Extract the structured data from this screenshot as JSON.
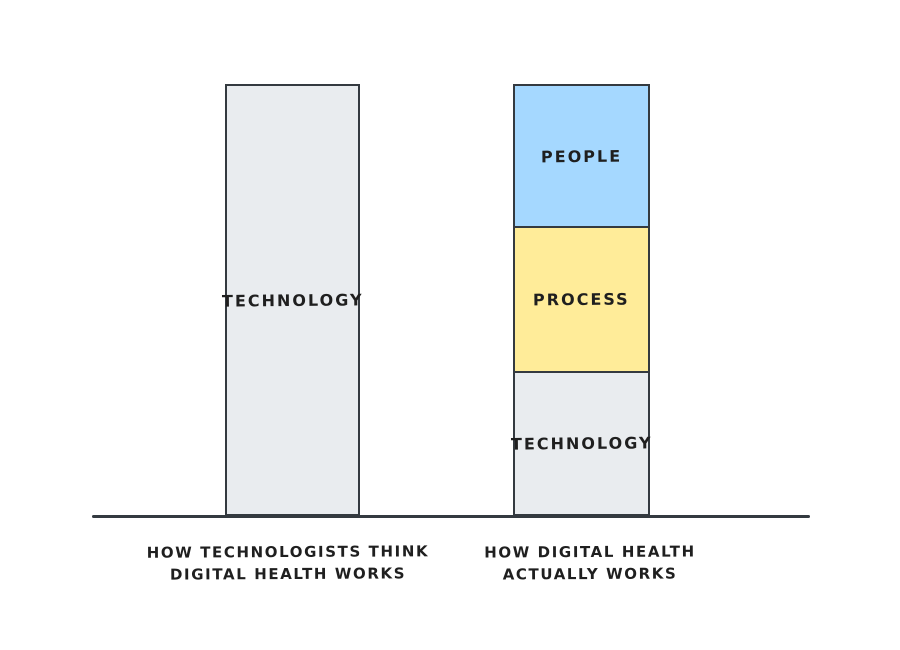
{
  "page": {
    "background_color": "#ffffff",
    "style": "hand-drawn comic (xkcd/excalidraw) chart, no title, no numeric axes"
  },
  "chart_data": {
    "type": "bar",
    "subtype": "stacked-bar-comparison",
    "title": "",
    "xlabel": "",
    "ylabel": "",
    "axis": {
      "baseline_visible": true,
      "gridlines": false,
      "tick_labels": false
    },
    "colors": {
      "stroke": "#343a40",
      "text": "#1f1f1f",
      "people_blue": "#a5d8ff",
      "process_yellow": "#ffec99",
      "technology_gray": "#e9ecef"
    },
    "bars": [
      {
        "caption_line1": "HOW TECHNOLOGISTS THINK",
        "caption_line2": "DIGITAL HEALTH WORKS",
        "total_height_percent": 100,
        "segments": [
          {
            "label": "TECHNOLOGY",
            "color": "#e9ecef",
            "percent_of_bar": 100
          }
        ]
      },
      {
        "caption_line1": "HOW DIGITAL HEALTH",
        "caption_line2": "ACTUALLY WORKS",
        "total_height_percent": 100,
        "segments": [
          {
            "label": "PEOPLE",
            "color": "#a5d8ff",
            "percent_of_bar": 33
          },
          {
            "label": "PROCESS",
            "color": "#ffec99",
            "percent_of_bar": 34
          },
          {
            "label": "TECHNOLOGY",
            "color": "#e9ecef",
            "percent_of_bar": 33
          }
        ]
      }
    ]
  }
}
